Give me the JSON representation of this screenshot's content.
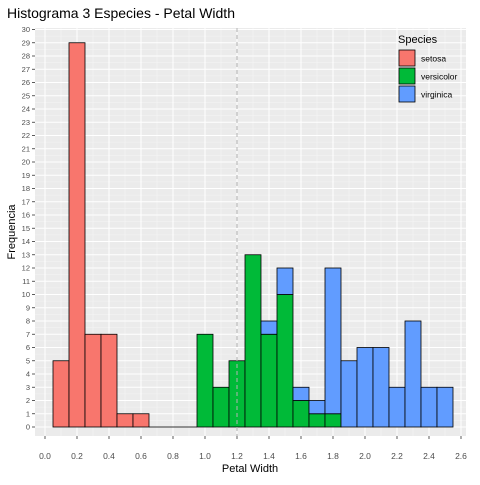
{
  "chart_data": {
    "type": "bar",
    "title": "Histograma 3 Especies - Petal Width",
    "xlabel": "Petal Width",
    "ylabel": "Frequencia",
    "xlim": [
      0.0,
      2.6
    ],
    "ylim": [
      0,
      30
    ],
    "x_ticks": [
      "0.0",
      "0.2",
      "0.4",
      "0.6",
      "0.8",
      "1.0",
      "1.2",
      "1.4",
      "1.6",
      "1.8",
      "2.0",
      "2.2",
      "2.4",
      "2.6"
    ],
    "y_ticks": [
      "0",
      "1",
      "2",
      "3",
      "4",
      "5",
      "6",
      "7",
      "8",
      "9",
      "10",
      "11",
      "12",
      "13",
      "14",
      "15",
      "16",
      "17",
      "18",
      "19",
      "20",
      "21",
      "22",
      "23",
      "24",
      "25",
      "26",
      "27",
      "28",
      "29",
      "30"
    ],
    "bin_width": 0.1,
    "bin_centers": [
      0.1,
      0.2,
      0.3,
      0.4,
      0.5,
      0.6,
      0.7,
      0.8,
      0.9,
      1.0,
      1.1,
      1.2,
      1.3,
      1.4,
      1.5,
      1.6,
      1.7,
      1.8,
      1.9,
      2.0,
      2.1,
      2.2,
      2.3,
      2.4,
      2.5
    ],
    "stacked": true,
    "reference_line_x": 1.2,
    "grid": true,
    "legend": {
      "title": "Species",
      "position": "top-right"
    },
    "series": [
      {
        "name": "setosa",
        "color": "#F8766D",
        "values": [
          5,
          29,
          7,
          7,
          1,
          1,
          0,
          0,
          0,
          0,
          0,
          0,
          0,
          0,
          0,
          0,
          0,
          0,
          0,
          0,
          0,
          0,
          0,
          0,
          0
        ]
      },
      {
        "name": "versicolor",
        "color": "#00BA38",
        "values": [
          0,
          0,
          0,
          0,
          0,
          0,
          0,
          0,
          0,
          7,
          3,
          5,
          13,
          7,
          10,
          2,
          1,
          1,
          0,
          0,
          0,
          0,
          0,
          0,
          0
        ]
      },
      {
        "name": "virginica",
        "color": "#619CFF",
        "values": [
          0,
          0,
          0,
          0,
          0,
          0,
          0,
          0,
          0,
          0,
          0,
          0,
          0,
          1,
          2,
          1,
          1,
          11,
          5,
          6,
          6,
          3,
          8,
          3,
          3
        ]
      }
    ]
  }
}
